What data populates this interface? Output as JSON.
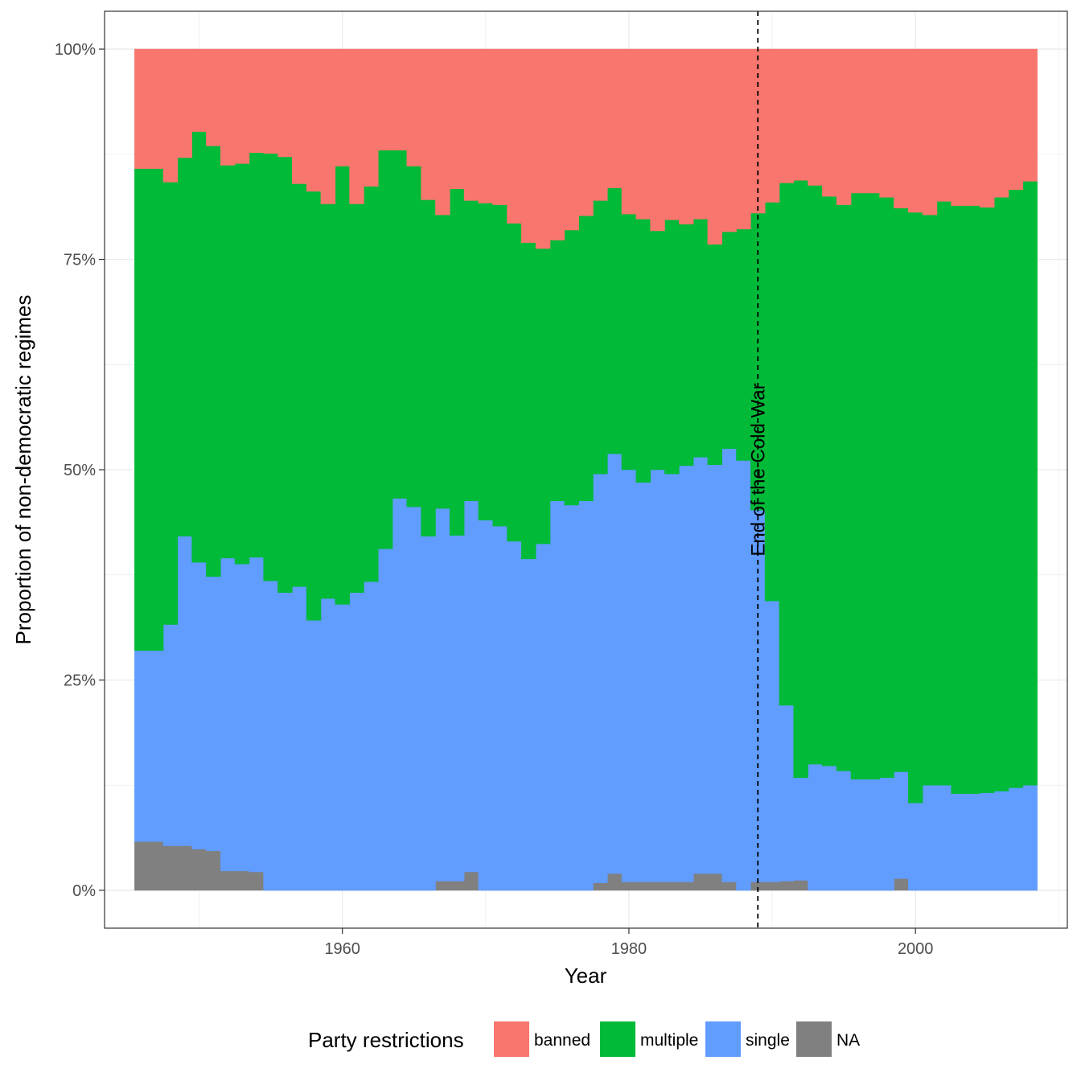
{
  "chart_data": {
    "type": "area",
    "stacked": true,
    "xlabel": "Year",
    "ylabel": "Proportion of non-democratic regimes",
    "xlim": [
      1943.4,
      2010.6
    ],
    "ylim": [
      -0.045,
      1.045
    ],
    "x_ticks": [
      1960,
      1980,
      2000
    ],
    "x_tick_labels": [
      "1960",
      "1980",
      "2000"
    ],
    "y_ticks": [
      0,
      0.25,
      0.5,
      0.75,
      1.0
    ],
    "y_tick_labels": [
      "0%",
      "25%",
      "50%",
      "75%",
      "100%"
    ],
    "grid": true,
    "legend": {
      "title": "Party restrictions",
      "position": "bottom",
      "items": [
        {
          "label": "banned",
          "color": "#F8766D"
        },
        {
          "label": "multiple",
          "color": "#00BA38"
        },
        {
          "label": "single",
          "color": "#619CFF"
        },
        {
          "label": "NA",
          "color": "#808080"
        }
      ]
    },
    "annotation": {
      "x": 1989,
      "label": "End of the Cold War",
      "line": "dashed"
    },
    "x": [
      1946,
      1947,
      1948,
      1949,
      1950,
      1951,
      1952,
      1953,
      1954,
      1955,
      1956,
      1957,
      1958,
      1959,
      1960,
      1961,
      1962,
      1963,
      1964,
      1965,
      1966,
      1967,
      1968,
      1969,
      1970,
      1971,
      1972,
      1973,
      1974,
      1975,
      1976,
      1977,
      1978,
      1979,
      1980,
      1981,
      1982,
      1983,
      1984,
      1985,
      1986,
      1987,
      1988,
      1989,
      1990,
      1991,
      1992,
      1993,
      1994,
      1995,
      1996,
      1997,
      1998,
      1999,
      2000,
      2001,
      2002,
      2003,
      2004,
      2005,
      2006,
      2007,
      2008
    ],
    "series": [
      {
        "name": "NA",
        "color": "#808080",
        "values": [
          0.058,
          0.058,
          0.053,
          0.053,
          0.049,
          0.047,
          0.023,
          0.023,
          0.022,
          0,
          0,
          0,
          0,
          0,
          0,
          0,
          0,
          0,
          0,
          0,
          0,
          0.011,
          0.011,
          0.022,
          0,
          0,
          0,
          0,
          0,
          0,
          0,
          0,
          0.009,
          0.02,
          0.01,
          0.01,
          0.01,
          0.01,
          0.01,
          0.02,
          0.02,
          0.01,
          0,
          0.01,
          0.01,
          0.011,
          0.012,
          0,
          0,
          0,
          0,
          0,
          0,
          0.014,
          0,
          0,
          0,
          0,
          0,
          0,
          0,
          0,
          0
        ]
      },
      {
        "name": "single",
        "color": "#619CFF",
        "values": [
          0.227,
          0.227,
          0.263,
          0.368,
          0.341,
          0.326,
          0.372,
          0.365,
          0.374,
          0.368,
          0.354,
          0.361,
          0.321,
          0.347,
          0.34,
          0.354,
          0.367,
          0.406,
          0.466,
          0.456,
          0.421,
          0.443,
          0.411,
          0.441,
          0.44,
          0.433,
          0.415,
          0.394,
          0.412,
          0.463,
          0.458,
          0.463,
          0.486,
          0.499,
          0.49,
          0.475,
          0.49,
          0.485,
          0.495,
          0.495,
          0.486,
          0.515,
          0.511,
          0.442,
          0.334,
          0.209,
          0.122,
          0.15,
          0.148,
          0.142,
          0.132,
          0.132,
          0.134,
          0.127,
          0.104,
          0.125,
          0.125,
          0.115,
          0.115,
          0.116,
          0.118,
          0.122,
          0.125
        ]
      },
      {
        "name": "multiple",
        "color": "#00BA38",
        "values": [
          0.573,
          0.573,
          0.526,
          0.45,
          0.512,
          0.512,
          0.467,
          0.476,
          0.481,
          0.508,
          0.518,
          0.479,
          0.51,
          0.469,
          0.521,
          0.462,
          0.47,
          0.474,
          0.414,
          0.405,
          0.4,
          0.349,
          0.412,
          0.357,
          0.377,
          0.382,
          0.378,
          0.376,
          0.351,
          0.31,
          0.327,
          0.339,
          0.325,
          0.316,
          0.304,
          0.313,
          0.284,
          0.302,
          0.287,
          0.283,
          0.262,
          0.258,
          0.275,
          0.353,
          0.474,
          0.621,
          0.71,
          0.688,
          0.677,
          0.673,
          0.697,
          0.697,
          0.69,
          0.67,
          0.702,
          0.678,
          0.694,
          0.699,
          0.699,
          0.696,
          0.706,
          0.711,
          0.718
        ]
      },
      {
        "name": "banned",
        "color": "#F8766D",
        "values": [
          0.142,
          0.142,
          0.158,
          0.129,
          0.098,
          0.115,
          0.138,
          0.136,
          0.123,
          0.124,
          0.128,
          0.16,
          0.169,
          0.184,
          0.139,
          0.184,
          0.163,
          0.12,
          0.12,
          0.139,
          0.179,
          0.197,
          0.166,
          0.18,
          0.183,
          0.185,
          0.207,
          0.23,
          0.237,
          0.227,
          0.215,
          0.198,
          0.18,
          0.165,
          0.196,
          0.202,
          0.216,
          0.203,
          0.208,
          0.202,
          0.232,
          0.217,
          0.214,
          0.195,
          0.182,
          0.159,
          0.156,
          0.162,
          0.175,
          0.185,
          0.171,
          0.171,
          0.176,
          0.189,
          0.194,
          0.197,
          0.181,
          0.186,
          0.186,
          0.188,
          0.176,
          0.167,
          0.157
        ]
      }
    ]
  }
}
